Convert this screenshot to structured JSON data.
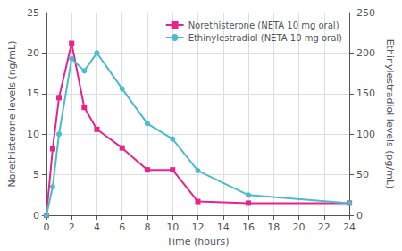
{
  "chart_data": {
    "type": "line",
    "x": [
      0,
      0.5,
      1,
      2,
      3,
      4,
      6,
      8,
      10,
      12,
      16,
      24
    ],
    "series": [
      {
        "name": "Norethisterone (NETA 10 mg oral)",
        "color": "#e8248c",
        "marker": "square",
        "axis": "y",
        "values": [
          0,
          8.2,
          14.5,
          21.2,
          13.3,
          10.6,
          8.3,
          5.6,
          5.6,
          1.7,
          1.5,
          1.5
        ]
      },
      {
        "name": "Ethinylestradiol (NETA 10 mg oral)",
        "color": "#4bbccf",
        "marker": "circle",
        "axis": "y2",
        "values": [
          0,
          35,
          100,
          193,
          178,
          200,
          156,
          113,
          94,
          55,
          25,
          15
        ]
      }
    ],
    "xlabel": "Time (hours)",
    "ylabel": "Norethisterone levels (ng/mL)",
    "y2label": "Ethinylestradiol levels (pg/mL)",
    "xlim": [
      0,
      24
    ],
    "xticks": [
      0,
      2,
      4,
      6,
      8,
      10,
      12,
      14,
      16,
      18,
      20,
      22,
      24
    ],
    "ylim": [
      0,
      25
    ],
    "yticks": [
      0,
      5,
      10,
      15,
      20,
      25
    ],
    "y2lim": [
      0,
      250
    ],
    "y2ticks": [
      0,
      50,
      100,
      150,
      200,
      250
    ],
    "grid": true,
    "legend": "upper right"
  }
}
